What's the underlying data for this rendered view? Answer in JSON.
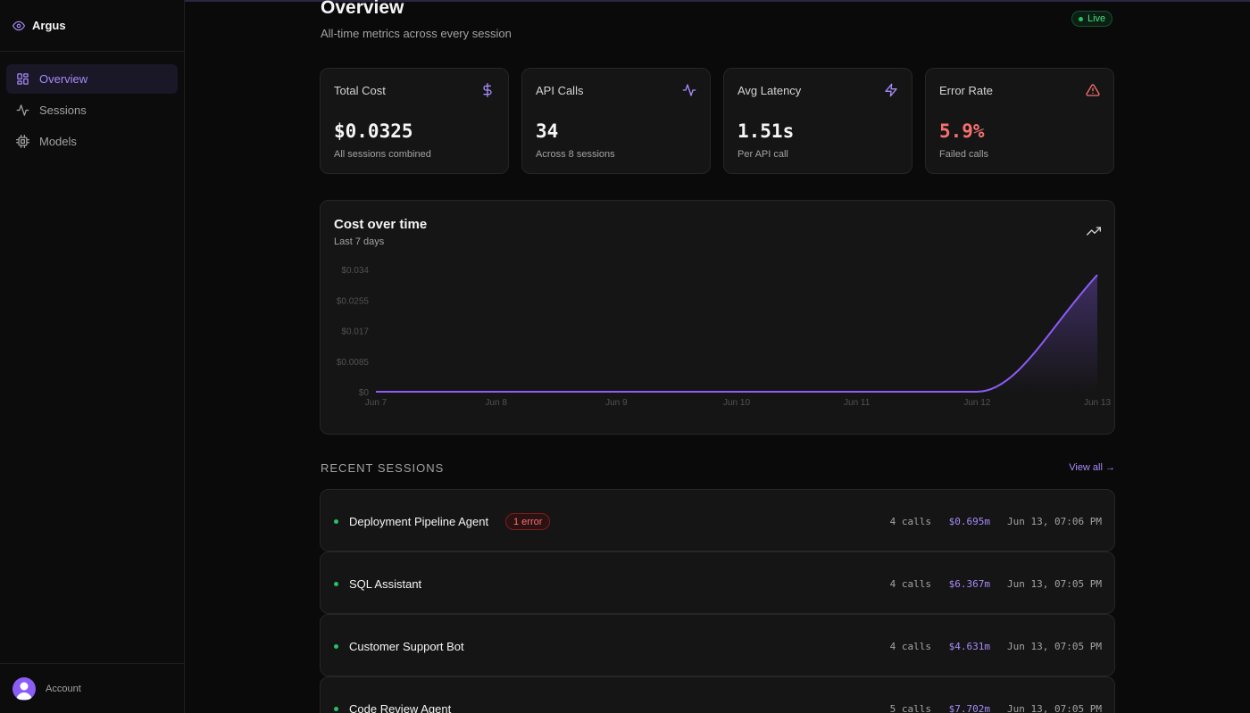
{
  "app": {
    "name": "Argus"
  },
  "sidebar": {
    "items": [
      {
        "label": "Overview",
        "icon": "grid-icon",
        "active": true
      },
      {
        "label": "Sessions",
        "icon": "activity-icon",
        "active": false
      },
      {
        "label": "Models",
        "icon": "cpu-icon",
        "active": false
      }
    ],
    "account_label": "Account"
  },
  "header": {
    "title": "Overview",
    "subtitle": "All-time metrics across every session",
    "live_label": "Live"
  },
  "metrics": [
    {
      "label": "Total Cost",
      "value": "$0.0325",
      "sub": "All sessions combined",
      "icon": "dollar-icon"
    },
    {
      "label": "API Calls",
      "value": "34",
      "sub": "Across 8 sessions",
      "icon": "activity-icon"
    },
    {
      "label": "Avg Latency",
      "value": "1.51s",
      "sub": "Per API call",
      "icon": "zap-icon"
    },
    {
      "label": "Error Rate",
      "value": "5.9%",
      "sub": "Failed calls",
      "icon": "alert-triangle-icon"
    }
  ],
  "chart_data": {
    "type": "area",
    "title": "Cost over time",
    "subtitle": "Last 7 days",
    "categories": [
      "Jun 7",
      "Jun 8",
      "Jun 9",
      "Jun 10",
      "Jun 11",
      "Jun 12",
      "Jun 13"
    ],
    "series": [
      {
        "values": [
          0,
          0,
          0,
          0,
          0,
          0,
          0.0325
        ]
      }
    ],
    "yticks": [
      "$0",
      "$0.0085",
      "$0.017",
      "$0.0255",
      "$0.034"
    ],
    "ylim": [
      0,
      0.034
    ],
    "grid": false,
    "line_color": "#8b5cf6"
  },
  "sessions": {
    "header": "RECENT SESSIONS",
    "view_all": "View all →",
    "rows": [
      {
        "name": "Deployment Pipeline Agent",
        "error": "1 error",
        "calls": "4 calls",
        "cost": "$0.695m",
        "time": "Jun 13, 07:06 PM"
      },
      {
        "name": "SQL Assistant",
        "error": "",
        "calls": "4 calls",
        "cost": "$6.367m",
        "time": "Jun 13, 07:05 PM"
      },
      {
        "name": "Customer Support Bot",
        "error": "",
        "calls": "4 calls",
        "cost": "$4.631m",
        "time": "Jun 13, 07:05 PM"
      },
      {
        "name": "Code Review Agent",
        "error": "",
        "calls": "5 calls",
        "cost": "$7.702m",
        "time": "Jun 13, 07:05 PM"
      }
    ]
  }
}
